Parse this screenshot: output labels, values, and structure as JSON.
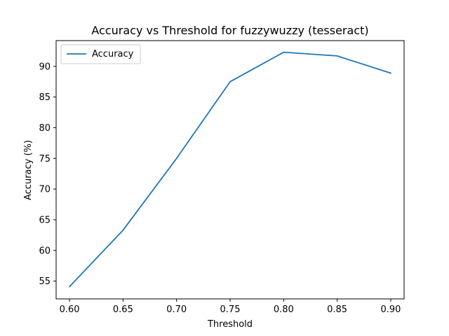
{
  "chart_data": {
    "type": "line",
    "title": "Accuracy vs Threshold for fuzzywuzzy (tesseract)",
    "xlabel": "Threshold",
    "ylabel": "Accuracy (%)",
    "x": [
      0.6,
      0.65,
      0.7,
      0.75,
      0.8,
      0.85,
      0.9
    ],
    "x_tick_labels": [
      "0.60",
      "0.65",
      "0.70",
      "0.75",
      "0.80",
      "0.85",
      "0.90"
    ],
    "y_ticks": [
      55,
      60,
      65,
      70,
      75,
      80,
      85,
      90
    ],
    "y_tick_labels": [
      "55",
      "60",
      "65",
      "70",
      "75",
      "80",
      "85",
      "90"
    ],
    "xlim": [
      0.5875,
      0.9125
    ],
    "ylim": [
      52.1,
      94.2
    ],
    "grid": false,
    "legend_position": "top-left",
    "series": [
      {
        "name": "Accuracy",
        "color": "#1f77b4",
        "values": [
          54.1,
          63.3,
          75.0,
          87.5,
          92.3,
          91.7,
          88.9
        ]
      }
    ]
  }
}
